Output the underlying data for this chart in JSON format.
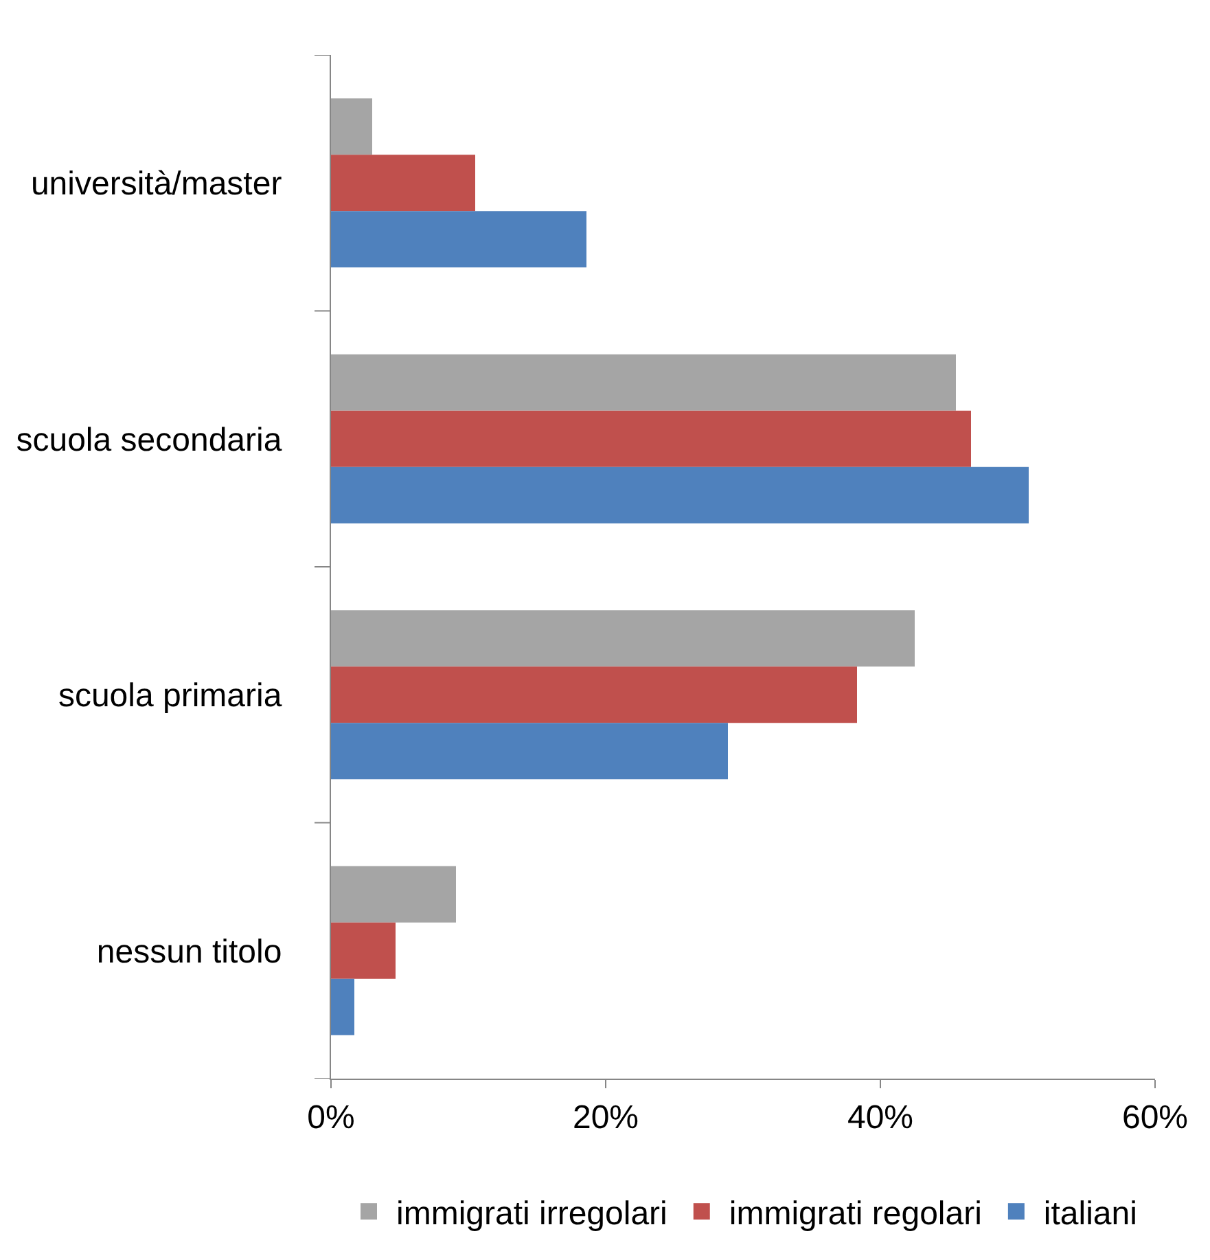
{
  "chart_data": {
    "type": "bar",
    "orientation": "horizontal",
    "categories": [
      "università/master",
      "scuola secondaria",
      "scuola primaria",
      "nessun titolo"
    ],
    "series": [
      {
        "name": "immigrati irregolari",
        "color": "#a5a5a5",
        "values": [
          3.0,
          45.5,
          42.5,
          9.1
        ]
      },
      {
        "name": "immigrati regolari",
        "color": "#c0504d",
        "values": [
          10.5,
          46.6,
          38.3,
          4.7
        ]
      },
      {
        "name": "italiani",
        "color": "#4f81bd",
        "values": [
          18.6,
          50.8,
          28.9,
          1.7
        ]
      }
    ],
    "xlim": [
      0,
      60
    ],
    "xticks": [
      {
        "value": 0,
        "label": "0%"
      },
      {
        "value": 20,
        "label": "20%"
      },
      {
        "value": 40,
        "label": "40%"
      },
      {
        "value": 60,
        "label": "60%"
      }
    ],
    "legend": "bottom"
  }
}
